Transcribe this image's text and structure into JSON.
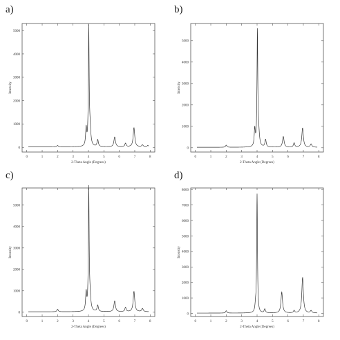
{
  "chart_data": [
    {
      "type": "line",
      "panel_label": "a)",
      "xlabel": "2-Theta Angle (Degrees)",
      "ylabel": "Intensity",
      "xlim": [
        -0.3,
        8.3
      ],
      "ylim": [
        -200,
        5300
      ],
      "xticks": [
        0,
        1,
        2,
        3,
        4,
        5,
        6,
        7,
        8
      ],
      "yticks": [
        0,
        1000,
        2000,
        3000,
        4000,
        5000
      ],
      "grid": false,
      "baseline": 20,
      "peaks": [
        {
          "x": 2.0,
          "height": 60,
          "width": 0.05
        },
        {
          "x": 3.85,
          "height": 750,
          "width": 0.04
        },
        {
          "x": 4.02,
          "height": 4950,
          "width": 0.03
        },
        {
          "x": 4.1,
          "height": 700,
          "width": 0.06
        },
        {
          "x": 4.6,
          "height": 300,
          "width": 0.05
        },
        {
          "x": 5.7,
          "height": 420,
          "width": 0.06
        },
        {
          "x": 6.4,
          "height": 150,
          "width": 0.05
        },
        {
          "x": 6.95,
          "height": 820,
          "width": 0.06
        },
        {
          "x": 7.5,
          "height": 80,
          "width": 0.06
        },
        {
          "x": 7.85,
          "height": 60,
          "width": 0.05
        }
      ]
    },
    {
      "type": "line",
      "panel_label": "b)",
      "xlabel": "2-Theta Angle (Degrees)",
      "ylabel": "Intensity",
      "xlim": [
        -0.3,
        8.3
      ],
      "ylim": [
        -200,
        5800
      ],
      "xticks": [
        0,
        1,
        2,
        3,
        4,
        5,
        6,
        7,
        8
      ],
      "yticks": [
        0,
        1000,
        2000,
        3000,
        4000,
        5000
      ],
      "grid": false,
      "baseline": 20,
      "peaks": [
        {
          "x": 2.0,
          "height": 100,
          "width": 0.05
        },
        {
          "x": 3.85,
          "height": 800,
          "width": 0.04
        },
        {
          "x": 4.02,
          "height": 5300,
          "width": 0.03
        },
        {
          "x": 4.1,
          "height": 600,
          "width": 0.06
        },
        {
          "x": 4.55,
          "height": 350,
          "width": 0.05
        },
        {
          "x": 5.7,
          "height": 500,
          "width": 0.06
        },
        {
          "x": 6.4,
          "height": 200,
          "width": 0.05
        },
        {
          "x": 6.95,
          "height": 900,
          "width": 0.06
        },
        {
          "x": 7.5,
          "height": 150,
          "width": 0.06
        }
      ]
    },
    {
      "type": "line",
      "panel_label": "c)",
      "xlabel": "2-Theta Angle (Degrees)",
      "ylabel": "Intensity",
      "xlim": [
        -0.3,
        8.3
      ],
      "ylim": [
        -200,
        5800
      ],
      "xticks": [
        0,
        1,
        2,
        3,
        4,
        5,
        6,
        7,
        8
      ],
      "yticks": [
        0,
        1000,
        2000,
        3000,
        4000,
        5000
      ],
      "grid": false,
      "baseline": 20,
      "peaks": [
        {
          "x": 2.0,
          "height": 120,
          "width": 0.05
        },
        {
          "x": 3.85,
          "height": 850,
          "width": 0.04
        },
        {
          "x": 4.02,
          "height": 5650,
          "width": 0.03
        },
        {
          "x": 4.1,
          "height": 600,
          "width": 0.06
        },
        {
          "x": 4.6,
          "height": 300,
          "width": 0.05
        },
        {
          "x": 5.7,
          "height": 500,
          "width": 0.06
        },
        {
          "x": 6.4,
          "height": 200,
          "width": 0.05
        },
        {
          "x": 6.95,
          "height": 950,
          "width": 0.06
        },
        {
          "x": 7.5,
          "height": 150,
          "width": 0.06
        }
      ]
    },
    {
      "type": "line",
      "panel_label": "d)",
      "xlabel": "2-Theta Angle (Degrees)",
      "ylabel": "Intensity",
      "xlim": [
        -0.3,
        8.3
      ],
      "ylim": [
        -200,
        8100
      ],
      "xticks": [
        0,
        1,
        2,
        3,
        4,
        5,
        6,
        7,
        8
      ],
      "yticks": [
        0,
        1000,
        2000,
        3000,
        4000,
        5000,
        6000,
        7000,
        8000
      ],
      "grid": false,
      "baseline": 20,
      "peaks": [
        {
          "x": 2.0,
          "height": 150,
          "width": 0.05
        },
        {
          "x": 3.9,
          "height": 400,
          "width": 0.04
        },
        {
          "x": 4.0,
          "height": 7650,
          "width": 0.03
        },
        {
          "x": 4.5,
          "height": 250,
          "width": 0.05
        },
        {
          "x": 5.6,
          "height": 1350,
          "width": 0.06
        },
        {
          "x": 6.4,
          "height": 150,
          "width": 0.05
        },
        {
          "x": 6.95,
          "height": 2300,
          "width": 0.06
        },
        {
          "x": 7.5,
          "height": 150,
          "width": 0.06
        }
      ]
    }
  ]
}
